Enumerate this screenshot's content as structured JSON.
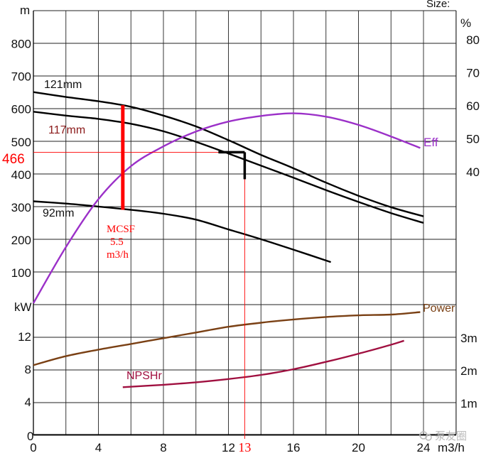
{
  "chart_data": {
    "type": "line",
    "title": "",
    "x_axis": {
      "unit": "m3/h",
      "range": [
        0,
        24
      ],
      "ticks": [
        "0",
        "4",
        "8",
        "12",
        "16",
        "20",
        "24"
      ],
      "grid": true
    },
    "head_axis": {
      "unit": "m",
      "range": [
        0,
        900
      ],
      "ticks": [
        "100",
        "200",
        "300",
        "400",
        "500",
        "600",
        "700",
        "800"
      ]
    },
    "efficiency_axis": {
      "unit": "%",
      "ticks": [
        "40",
        "50",
        "60",
        "70",
        "80"
      ]
    },
    "power_axis": {
      "unit": "kW",
      "range": [
        0,
        16
      ],
      "ticks": [
        "0",
        "4",
        "8",
        "12"
      ]
    },
    "npsh_axis": {
      "unit_ticks": [
        "1m",
        "2m",
        "3m"
      ]
    },
    "top_right_label": "Size:",
    "series": [
      {
        "name": "121mm",
        "axis": "head",
        "color": "#000000",
        "x": [
          0,
          2,
          4,
          6,
          8,
          10,
          12,
          14,
          16,
          18,
          20,
          22,
          24
        ],
        "y": [
          650,
          635,
          622,
          605,
          578,
          545,
          503,
          458,
          417,
          373,
          333,
          298,
          270
        ]
      },
      {
        "name": "117mm",
        "axis": "head",
        "color": "#000000",
        "label_color": "#8b1a1a",
        "x": [
          0,
          2,
          4,
          6,
          8,
          10,
          12,
          14,
          16,
          18,
          20,
          22,
          24
        ],
        "y": [
          590,
          578,
          568,
          553,
          530,
          498,
          462,
          425,
          388,
          350,
          314,
          280,
          250
        ]
      },
      {
        "name": "92mm",
        "axis": "head",
        "color": "#000000",
        "x": [
          0,
          2,
          4,
          6,
          8,
          10,
          12,
          14,
          16,
          18.3
        ],
        "y": [
          316,
          309,
          300,
          290,
          278,
          260,
          230,
          200,
          168,
          130
        ]
      },
      {
        "name": "Eff",
        "axis": "efficiency",
        "color": "#9b30c8",
        "x": [
          0,
          2,
          4,
          6,
          8,
          10,
          12,
          14,
          16,
          18,
          20,
          22,
          23.8
        ],
        "y": [
          0,
          17,
          31.5,
          41.5,
          47.5,
          52,
          55,
          56.7,
          57.5,
          56.5,
          54,
          50.5,
          47
        ]
      },
      {
        "name": "Power",
        "axis": "power",
        "color": "#7a4014",
        "x": [
          0,
          2,
          4,
          6,
          8,
          10,
          12,
          14,
          16,
          18,
          20,
          22,
          23.8
        ],
        "y": [
          8.5,
          9.6,
          10.4,
          11.1,
          11.8,
          12.5,
          13.2,
          13.7,
          14.1,
          14.4,
          14.6,
          14.7,
          15.0
        ]
      },
      {
        "name": "NPSHr",
        "axis": "npsh",
        "color": "#a01040",
        "x": [
          5.5,
          8,
          10,
          12,
          14,
          16,
          18,
          20,
          22,
          22.8
        ],
        "y": [
          5.8,
          6.1,
          6.4,
          6.8,
          7.3,
          8.0,
          8.9,
          9.9,
          11.0,
          11.5
        ]
      }
    ],
    "annotations": {
      "mcsf_line": {
        "x": 5.5,
        "y_from": 290,
        "y_to": 610,
        "color": "#ff0000"
      },
      "mcsf_label": [
        "MCSF",
        "5.5",
        "m3/h"
      ],
      "duty_flow": {
        "x": 13,
        "label": "13"
      },
      "duty_head": {
        "y": 466,
        "label": "466"
      },
      "duty_marker": {
        "x": 13,
        "head": 466
      }
    },
    "watermark": "泵友圈"
  }
}
